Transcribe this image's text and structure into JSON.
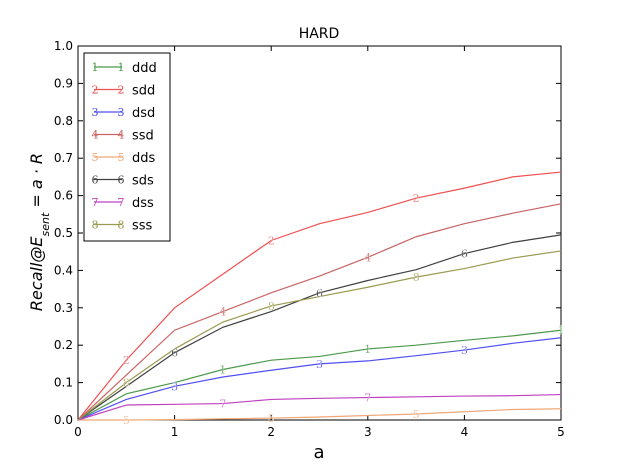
{
  "chart_data": {
    "type": "line",
    "title": "HARD",
    "xlabel": "a",
    "ylabel": "Recall@E_sent = a · R",
    "xlim": [
      0,
      5
    ],
    "ylim": [
      0,
      1.0
    ],
    "x_ticks": [
      "0",
      "1",
      "2",
      "3",
      "4",
      "5"
    ],
    "y_ticks": [
      "0.0",
      "0.1",
      "0.2",
      "0.3",
      "0.4",
      "0.5",
      "0.6",
      "0.7",
      "0.8",
      "0.9",
      "1.0"
    ],
    "legend_position": "top-left",
    "x": [
      0,
      0.5,
      1,
      1.5,
      2,
      2.5,
      3,
      3.5,
      4,
      4.5,
      5
    ],
    "series": [
      {
        "name": "ddd",
        "marker": "1",
        "color": "#4c9a4c",
        "values": [
          0.0,
          0.07,
          0.1,
          0.135,
          0.16,
          0.17,
          0.19,
          0.2,
          0.213,
          0.225,
          0.24
        ]
      },
      {
        "name": "sdd",
        "marker": "2",
        "color": "#f05050",
        "values": [
          0.0,
          0.16,
          0.3,
          0.39,
          0.48,
          0.525,
          0.555,
          0.593,
          0.62,
          0.65,
          0.663
        ]
      },
      {
        "name": "dsd",
        "marker": "3",
        "color": "#5050f0",
        "values": [
          0.0,
          0.055,
          0.09,
          0.115,
          0.133,
          0.15,
          0.158,
          0.172,
          0.187,
          0.205,
          0.22
        ]
      },
      {
        "name": "ssd",
        "marker": "4",
        "color": "#c86464",
        "values": [
          0.0,
          0.12,
          0.24,
          0.29,
          0.34,
          0.385,
          0.435,
          0.49,
          0.525,
          0.553,
          0.578
        ]
      },
      {
        "name": "dds",
        "marker": "5",
        "color": "#f0a878",
        "values": [
          0.0,
          0.0,
          0.001,
          0.003,
          0.005,
          0.008,
          0.012,
          0.016,
          0.022,
          0.028,
          0.03
        ]
      },
      {
        "name": "sds",
        "marker": "6",
        "color": "#404040",
        "values": [
          0.0,
          0.09,
          0.18,
          0.248,
          0.29,
          0.34,
          0.373,
          0.402,
          0.445,
          0.475,
          0.495
        ]
      },
      {
        "name": "dss",
        "marker": "7",
        "color": "#c040c0",
        "values": [
          0.0,
          0.04,
          0.042,
          0.044,
          0.055,
          0.058,
          0.06,
          0.062,
          0.064,
          0.065,
          0.068
        ]
      },
      {
        "name": "sss",
        "marker": "8",
        "color": "#9a9a50",
        "values": [
          0.0,
          0.1,
          0.19,
          0.262,
          0.305,
          0.33,
          0.355,
          0.382,
          0.405,
          0.433,
          0.452
        ]
      }
    ],
    "marker_points": [
      {
        "series": 0,
        "x": [
          1.5,
          3,
          5
        ]
      },
      {
        "series": 1,
        "x": [
          0.5,
          2,
          3.5
        ]
      },
      {
        "series": 2,
        "x": [
          1,
          2.5,
          4
        ]
      },
      {
        "series": 3,
        "x": [
          1.5,
          3
        ]
      },
      {
        "series": 4,
        "x": [
          0.5,
          2,
          3.5
        ]
      },
      {
        "series": 5,
        "x": [
          1,
          2.5,
          4
        ]
      },
      {
        "series": 6,
        "x": [
          1.5,
          3
        ]
      },
      {
        "series": 7,
        "x": [
          0.5,
          2,
          3.5
        ]
      }
    ]
  }
}
